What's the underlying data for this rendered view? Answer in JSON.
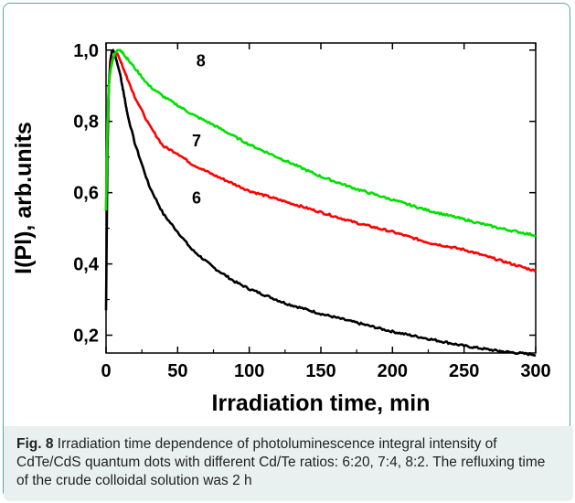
{
  "caption": {
    "label": "Fig. 8",
    "text": "Irradiation time dependence of photoluminescence integral intensity of CdTe/CdS quantum dots with different Cd/Te ratios: 6:20, 7:4, 8:2. The refluxing time of the crude colloidal solution was 2 h"
  },
  "colors": {
    "frame": "#58a7a1",
    "caption_bg": "#e8f1f0"
  },
  "chart_data": {
    "type": "line",
    "title": "",
    "xlabel": "Irradiation time, min",
    "ylabel": "I(Pl), arb.units",
    "xlim": [
      0,
      300
    ],
    "ylim": [
      0.15,
      1.02
    ],
    "x_ticks": [
      0,
      50,
      100,
      150,
      200,
      250,
      300
    ],
    "x_tick_labels": [
      "0",
      "50",
      "100",
      "150",
      "200",
      "250",
      "300"
    ],
    "y_ticks": [
      0.2,
      0.4,
      0.6,
      0.8,
      1.0
    ],
    "y_tick_labels": [
      "0,2",
      "0,4",
      "0,6",
      "0,8",
      "1,0"
    ],
    "grid": false,
    "series": [
      {
        "name": "6",
        "color": "#000000",
        "x": [
          0,
          1,
          2,
          3,
          4,
          5,
          6,
          8,
          10,
          15,
          20,
          30,
          40,
          50,
          60,
          75,
          90,
          100,
          125,
          150,
          175,
          200,
          225,
          250,
          275,
          300
        ],
        "y": [
          0.27,
          0.72,
          0.9,
          0.97,
          0.995,
          1.0,
          0.99,
          0.96,
          0.93,
          0.82,
          0.74,
          0.62,
          0.54,
          0.49,
          0.44,
          0.39,
          0.35,
          0.33,
          0.29,
          0.26,
          0.235,
          0.21,
          0.19,
          0.17,
          0.155,
          0.145
        ]
      },
      {
        "name": "7",
        "color": "#ff0000",
        "x": [
          0,
          1,
          2,
          3,
          4,
          5,
          6,
          8,
          10,
          12,
          15,
          20,
          30,
          40,
          50,
          60,
          75,
          100,
          125,
          150,
          175,
          200,
          225,
          250,
          275,
          300
        ],
        "y": [
          0.55,
          0.8,
          0.9,
          0.94,
          0.97,
          0.98,
          0.985,
          0.99,
          0.97,
          0.95,
          0.92,
          0.87,
          0.79,
          0.73,
          0.71,
          0.68,
          0.65,
          0.605,
          0.575,
          0.545,
          0.515,
          0.49,
          0.46,
          0.44,
          0.41,
          0.38
        ]
      },
      {
        "name": "8",
        "color": "#00e000",
        "x": [
          0,
          1,
          2,
          3,
          4,
          5,
          6,
          8,
          10,
          12,
          15,
          20,
          30,
          40,
          50,
          60,
          75,
          100,
          125,
          150,
          175,
          200,
          225,
          250,
          275,
          300
        ],
        "y": [
          0.55,
          0.8,
          0.9,
          0.94,
          0.96,
          0.975,
          0.99,
          1.0,
          1.0,
          0.99,
          0.975,
          0.95,
          0.9,
          0.87,
          0.845,
          0.82,
          0.79,
          0.735,
          0.69,
          0.645,
          0.61,
          0.58,
          0.55,
          0.525,
          0.5,
          0.48
        ]
      }
    ]
  }
}
